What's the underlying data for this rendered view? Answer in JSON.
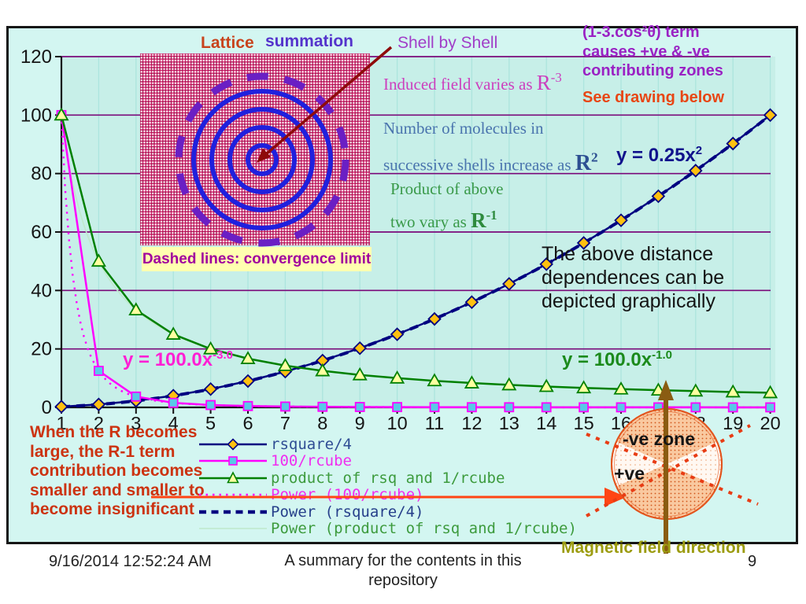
{
  "header_annotations": {
    "lattice": "Lattice",
    "summation": "summation",
    "shell_by_shell": "Shell by Shell",
    "cos_term": [
      "(1-3.cos²θ) term",
      "causes +ve & -ve",
      "contributing zones"
    ],
    "see_drawing": "See drawing below"
  },
  "notes": {
    "induced": {
      "text": "Induced field varies as",
      "base": "R",
      "exp": "-3"
    },
    "molecules": {
      "line1": "Number of molecules in",
      "line2": "successive shells increase as",
      "base": "R",
      "exp": "2"
    },
    "product": {
      "line1": "Product of above",
      "line2": "two vary as",
      "base": "R",
      "exp": "-1"
    },
    "depicted": "The above distance dependences can be depicted graphically",
    "dashed_note": "Dashed lines: convergence limit",
    "when_r": "When the R becomes\nlarge, the R-1 term\ncontribution becomes\nsmaller and smaller to\nbecome insignificant"
  },
  "drawing": {
    "neg_zone": "-ve zone",
    "pos_zone": "+ve",
    "magnetic": "Magnetic field direction"
  },
  "footer": {
    "date": "9/16/2014 12:52:24 AM",
    "title": "A summary for the contents in this repository",
    "page": "9"
  },
  "chart_data": {
    "type": "line",
    "title": "",
    "xlabel": "",
    "ylabel": "",
    "x": [
      1,
      2,
      3,
      4,
      5,
      6,
      7,
      8,
      9,
      10,
      11,
      12,
      13,
      14,
      15,
      16,
      17,
      18,
      19,
      20
    ],
    "yticks": [
      0,
      20,
      40,
      60,
      80,
      100,
      120
    ],
    "ylim": [
      0,
      120
    ],
    "grid": {
      "horizontal_color": "#7a0a7a",
      "vertical_color": "#ace5dd"
    },
    "legend_position": "bottom-left",
    "plot_bg": "#c7efe8",
    "series": [
      {
        "name": "rsquare/4",
        "color": "#000080",
        "marker": "diamond",
        "marker_fill": "#ffc010",
        "label_color": "#2f4d94",
        "values": [
          0.25,
          1,
          2.25,
          4,
          6.25,
          9,
          12.25,
          16,
          20.25,
          25,
          30.25,
          36,
          42.25,
          49,
          56.25,
          64,
          72.25,
          81,
          90.25,
          100
        ]
      },
      {
        "name": "100/rcube",
        "color": "#ff00ff",
        "marker": "square",
        "marker_fill": "#59c8e8",
        "label_color": "#f02cf0",
        "values": [
          100,
          12.5,
          3.7,
          1.56,
          0.8,
          0.46,
          0.29,
          0.2,
          0.14,
          0.1,
          0.08,
          0.06,
          0.05,
          0.04,
          0.03,
          0.02,
          0.02,
          0.02,
          0.01,
          0.01
        ]
      },
      {
        "name": "product of rsq and 1/rcube",
        "color": "#008000",
        "marker": "triangle",
        "marker_fill": "#ffffa0",
        "label_color": "#3d9b3d",
        "values": [
          100,
          50,
          33.33,
          25,
          20,
          16.67,
          14.29,
          12.5,
          11.11,
          10,
          9.09,
          8.33,
          7.69,
          7.14,
          6.67,
          6.25,
          5.88,
          5.56,
          5.26,
          5
        ]
      },
      {
        "name": "Power (100/rcube)",
        "color": "#ff00ff",
        "style": "dotted",
        "label_color": "#f02cf0",
        "power": {
          "a": 100,
          "b": -3
        }
      },
      {
        "name": "Power (rsquare/4)",
        "color": "#000080",
        "style": "dashed",
        "label_color": "#27408b",
        "power": {
          "a": 0.25,
          "b": 2
        }
      },
      {
        "name": "Power (product of rsq and 1/rcube)",
        "color": "#bfe9cc",
        "style": "thin",
        "label_color": "#3d9b3d",
        "power": {
          "a": 100,
          "b": -1
        }
      }
    ],
    "equations": [
      {
        "text": "y = 0.25x",
        "sup": "2"
      },
      {
        "text": "y = 100.0x",
        "sup": "-3.0"
      },
      {
        "text": "y = 100.0x",
        "sup": "-1.0"
      }
    ]
  }
}
